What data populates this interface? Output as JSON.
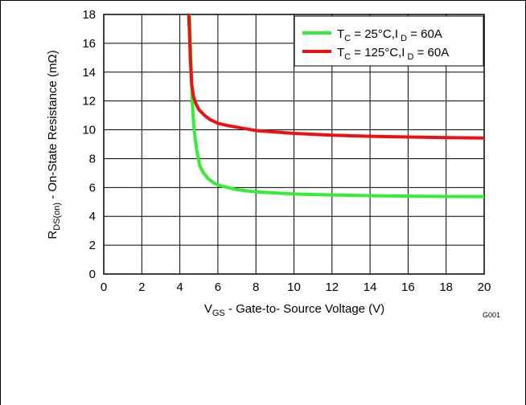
{
  "chart_data": {
    "type": "line",
    "x_axis": {
      "label_main": "V",
      "label_sub": "GS",
      "label_rest": " - Gate-to- Source Voltage (V)",
      "range": [
        0,
        20
      ],
      "ticks": [
        "0",
        "2",
        "4",
        "6",
        "8",
        "10",
        "12",
        "14",
        "16",
        "18",
        "20"
      ]
    },
    "y_axis": {
      "label_main": "R",
      "label_sub": "DS(on)",
      "label_rest": " - On-State Resistance  (mΩ)",
      "range": [
        0,
        18
      ],
      "ticks": [
        "0",
        "2",
        "4",
        "6",
        "8",
        "10",
        "12",
        "14",
        "16",
        "18"
      ]
    },
    "grid": true,
    "legend_position": "top-right",
    "figure_id": "G001",
    "series": [
      {
        "legend_main": "T",
        "legend_sub1": "C",
        "legend_mid": " = 25°C,I",
        "legend_sub2": " D",
        "legend_end": " = 60A",
        "color": "#33ee33",
        "points": [
          [
            4.5,
            18.5
          ],
          [
            4.58,
            15
          ],
          [
            4.65,
            12
          ],
          [
            4.75,
            10
          ],
          [
            4.9,
            8.5
          ],
          [
            5.05,
            7.5
          ],
          [
            5.25,
            7.0
          ],
          [
            5.5,
            6.6
          ],
          [
            5.8,
            6.3
          ],
          [
            6.2,
            6.1
          ],
          [
            7.0,
            5.85
          ],
          [
            8.0,
            5.7
          ],
          [
            10.0,
            5.55
          ],
          [
            12.0,
            5.48
          ],
          [
            14.0,
            5.43
          ],
          [
            16.0,
            5.4
          ],
          [
            18.0,
            5.38
          ],
          [
            20.0,
            5.37
          ]
        ]
      },
      {
        "legend_main": "T",
        "legend_sub1": "C",
        "legend_mid": " = 125°C,I",
        "legend_sub2": " D",
        "legend_end": " = 60A",
        "color": "#ee1111",
        "points": [
          [
            4.45,
            18.5
          ],
          [
            4.5,
            17
          ],
          [
            4.55,
            15
          ],
          [
            4.62,
            13.2
          ],
          [
            4.72,
            12.3
          ],
          [
            4.85,
            11.8
          ],
          [
            5.0,
            11.4
          ],
          [
            5.3,
            11.0
          ],
          [
            5.6,
            10.7
          ],
          [
            6.0,
            10.45
          ],
          [
            6.5,
            10.3
          ],
          [
            7.0,
            10.18
          ],
          [
            8.0,
            9.95
          ],
          [
            10.0,
            9.75
          ],
          [
            12.0,
            9.63
          ],
          [
            14.0,
            9.55
          ],
          [
            16.0,
            9.5
          ],
          [
            18.0,
            9.46
          ],
          [
            20.0,
            9.43
          ]
        ]
      }
    ]
  }
}
